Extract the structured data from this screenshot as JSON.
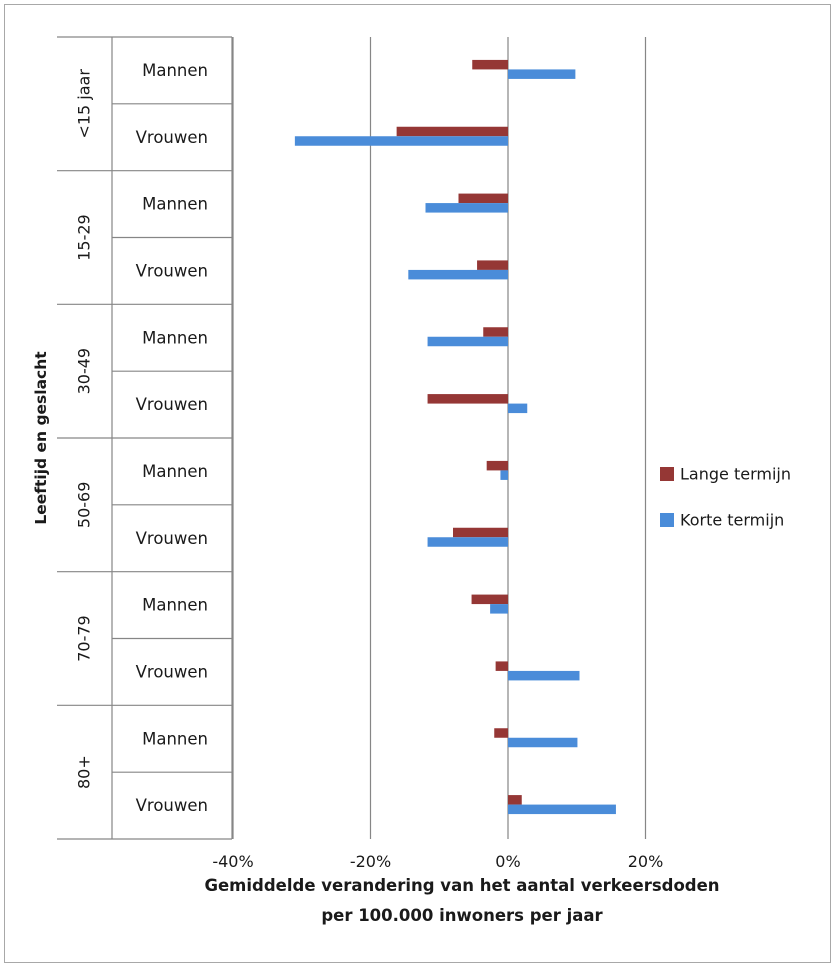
{
  "chart_data": {
    "type": "bar",
    "orientation": "horizontal",
    "title": "",
    "xlabel_lines": [
      "Gemiddelde verandering van het aantal verkeersdoden",
      "per 100.000 inwoners per jaar"
    ],
    "ylabel": "Leeftijd en geslacht",
    "xlim": [
      -40,
      20
    ],
    "x_ticks": [
      -40,
      -20,
      0,
      20
    ],
    "x_tick_labels": [
      "-40%",
      "-20%",
      "0%",
      "20%"
    ],
    "grid": "vertical major gridlines",
    "legend_position": "right",
    "groups": [
      {
        "label": "<15 jaar",
        "rows": [
          "Mannen",
          "Vrouwen"
        ]
      },
      {
        "label": "15-29",
        "rows": [
          "Mannen",
          "Vrouwen"
        ]
      },
      {
        "label": "30-49",
        "rows": [
          "Mannen",
          "Vrouwen"
        ]
      },
      {
        "label": "50-69",
        "rows": [
          "Mannen",
          "Vrouwen"
        ]
      },
      {
        "label": "70-79",
        "rows": [
          "Mannen",
          "Vrouwen"
        ]
      },
      {
        "label": "80+",
        "rows": [
          "Mannen",
          "Vrouwen"
        ]
      }
    ],
    "series": [
      {
        "name": "Lange termijn",
        "color": "#953735",
        "values": [
          -5.2,
          -16.2,
          -7.2,
          -4.5,
          -3.6,
          -11.7,
          -3.1,
          -8.0,
          -5.3,
          -1.8,
          -2.0,
          2.0
        ]
      },
      {
        "name": "Korte termijn",
        "color": "#4a8cd9",
        "values": [
          9.8,
          -31.0,
          -12.0,
          -14.5,
          -11.7,
          2.8,
          -1.1,
          -11.7,
          -2.6,
          10.4,
          10.1,
          15.7
        ]
      }
    ]
  }
}
